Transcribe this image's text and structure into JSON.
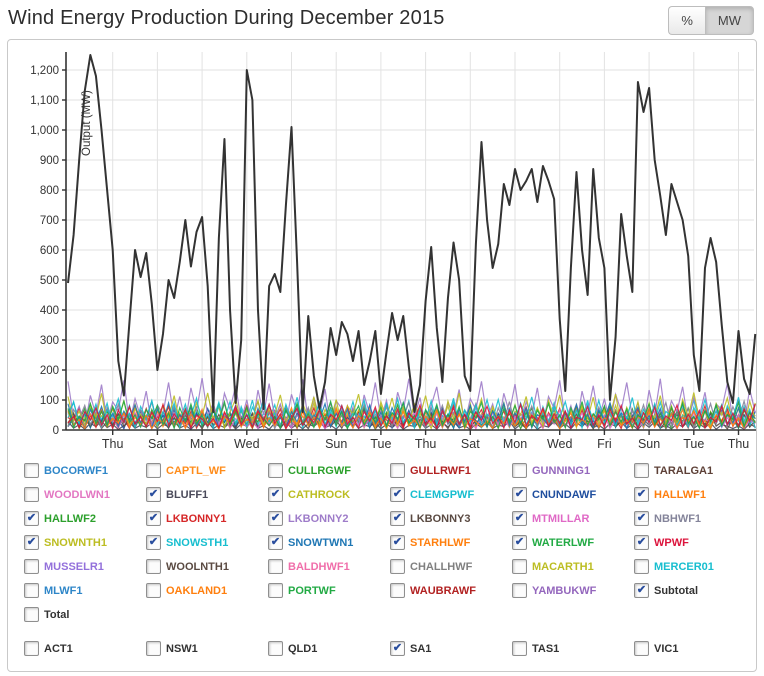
{
  "header": {
    "title": "Wind Energy Production During December 2015",
    "percent_label": "%",
    "mw_label": "MW",
    "active_unit": "MW"
  },
  "chart_data": {
    "type": "line",
    "title": "Wind Energy Production During December 2015",
    "xlabel": "",
    "ylabel": "Output (MW)",
    "ylim": [
      0,
      1260
    ],
    "grid": true,
    "legend_position": "checkbox grid below chart",
    "y_tick_values": [
      0,
      100,
      200,
      300,
      400,
      500,
      600,
      700,
      800,
      900,
      1000,
      1100,
      1200
    ],
    "y_tick_labels": [
      "0",
      "100",
      "200",
      "300",
      "400",
      "500",
      "600",
      "700",
      "800",
      "900",
      "1,000",
      "1,100",
      "1,200"
    ],
    "x_tick_days": [
      2,
      4,
      6,
      8,
      10,
      12,
      14,
      16,
      18,
      20,
      22,
      24,
      26,
      28,
      30
    ],
    "x_tick_labels": [
      "Thu",
      "Sat",
      "Mon",
      "Wed",
      "Fri",
      "Sun",
      "Tue",
      "Thu",
      "Sat",
      "Mon",
      "Wed",
      "Fri",
      "Sun",
      "Tue",
      "Thu"
    ],
    "x_start_day": 0,
    "x_step_days": 0.25,
    "x_span_days": 30.75,
    "subtotal_series": {
      "name": "Subtotal",
      "color": "#333333",
      "values": [
        490,
        650,
        900,
        1130,
        1250,
        1180,
        1000,
        800,
        600,
        230,
        115,
        360,
        600,
        510,
        590,
        420,
        200,
        320,
        500,
        440,
        560,
        700,
        545,
        660,
        710,
        480,
        60,
        640,
        970,
        400,
        90,
        300,
        1200,
        1100,
        400,
        70,
        480,
        520,
        460,
        750,
        1010,
        560,
        60,
        380,
        180,
        70,
        160,
        340,
        250,
        360,
        320,
        230,
        330,
        150,
        230,
        330,
        120,
        260,
        390,
        300,
        380,
        210,
        60,
        150,
        430,
        610,
        340,
        160,
        440,
        625,
        500,
        180,
        130,
        620,
        960,
        700,
        540,
        620,
        820,
        750,
        870,
        800,
        830,
        870,
        760,
        880,
        830,
        770,
        370,
        130,
        540,
        860,
        600,
        450,
        870,
        640,
        540,
        100,
        310,
        720,
        580,
        460,
        1160,
        1060,
        1140,
        900,
        780,
        650,
        820,
        760,
        700,
        580,
        250,
        130,
        540,
        640,
        560,
        350,
        160,
        90,
        330,
        170,
        120,
        320
      ]
    },
    "farm_band_pattern": [
      15,
      42,
      8,
      65,
      30,
      88,
      20,
      55,
      10,
      70,
      35,
      95,
      25,
      60,
      5,
      45,
      80,
      18,
      50,
      28,
      75,
      12,
      58,
      38,
      90,
      22,
      48,
      8,
      68,
      32,
      85,
      15,
      52,
      25,
      78,
      10,
      62,
      40,
      92,
      18,
      45,
      6,
      72,
      30,
      82,
      20,
      58,
      12,
      66,
      36,
      88,
      24,
      50,
      8,
      74,
      28,
      95,
      16,
      54,
      34,
      80,
      14,
      60,
      26,
      70,
      8,
      48,
      38,
      86,
      18,
      56,
      10,
      76,
      32,
      90,
      22,
      44,
      6,
      64,
      28,
      84,
      16,
      52,
      36,
      92,
      12,
      58,
      24,
      72,
      8,
      46,
      30,
      88,
      20,
      62,
      14,
      78,
      34,
      96,
      26,
      50,
      10,
      68,
      38,
      82,
      18,
      56,
      6,
      74,
      28,
      86,
      22,
      48,
      12,
      66,
      32,
      94,
      16,
      60,
      24,
      76,
      8,
      54,
      40
    ],
    "farm_series": [
      {
        "name": "BLUFF1",
        "color": "#4A4A5A",
        "scale": 0.32,
        "phase": 5
      },
      {
        "name": "CATHROCK",
        "color": "#BCBD22",
        "scale": 0.95,
        "phase": 12
      },
      {
        "name": "CLEMGPWF",
        "color": "#17BECF",
        "scale": 1.05,
        "phase": 23
      },
      {
        "name": "CNUNDAWF",
        "color": "#1F4E9E",
        "scale": 0.75,
        "phase": 31
      },
      {
        "name": "HALLWF1",
        "color": "#FF7F0E",
        "scale": 0.8,
        "phase": 44
      },
      {
        "name": "HALLWF2",
        "color": "#2CA02C",
        "scale": 0.9,
        "phase": 57
      },
      {
        "name": "LKBONNY1",
        "color": "#D62728",
        "scale": 0.85,
        "phase": 66
      },
      {
        "name": "LKBONNY2",
        "color": "#9E7CC9",
        "scale": 1.8,
        "phase": 74
      },
      {
        "name": "LKBONNY3",
        "color": "#5A4A42",
        "scale": 0.6,
        "phase": 83
      },
      {
        "name": "MTMILLAR",
        "color": "#E069C6",
        "scale": 0.7,
        "phase": 92
      },
      {
        "name": "NBHWF1",
        "color": "#84849A",
        "scale": 1.0,
        "phase": 101
      },
      {
        "name": "SNOWNTH1",
        "color": "#BCBD22",
        "scale": 1.3,
        "phase": 110
      },
      {
        "name": "SNOWSTH1",
        "color": "#17BECF",
        "scale": 1.15,
        "phase": 15
      },
      {
        "name": "SNOWTWN1",
        "color": "#1F77B4",
        "scale": 0.95,
        "phase": 38
      },
      {
        "name": "STARHLWF",
        "color": "#FF7F0E",
        "scale": 0.7,
        "phase": 50
      },
      {
        "name": "WATERLWF",
        "color": "#22AA44",
        "scale": 1.0,
        "phase": 88
      },
      {
        "name": "WPWF",
        "color": "#DC143C",
        "scale": 0.9,
        "phase": 99
      }
    ]
  },
  "legend": {
    "farms": [
      {
        "label": "BOCORWF1",
        "color": "#2E86C8",
        "checked": false
      },
      {
        "label": "CAPTL_WF",
        "color": "#FF8C1A",
        "checked": false
      },
      {
        "label": "CULLRGWF",
        "color": "#2CA02C",
        "checked": false
      },
      {
        "label": "GULLRWF1",
        "color": "#B22222",
        "checked": false
      },
      {
        "label": "GUNNING1",
        "color": "#9467BD",
        "checked": false
      },
      {
        "label": "TARALGA1",
        "color": "#5D4037",
        "checked": false
      },
      {
        "label": "WOODLWN1",
        "color": "#E377C2",
        "checked": false
      },
      {
        "label": "BLUFF1",
        "color": "#4A4A5A",
        "checked": true
      },
      {
        "label": "CATHROCK",
        "color": "#BCBD22",
        "checked": true
      },
      {
        "label": "CLEMGPWF",
        "color": "#17BECF",
        "checked": true
      },
      {
        "label": "CNUNDAWF",
        "color": "#1F4E9E",
        "checked": true
      },
      {
        "label": "HALLWF1",
        "color": "#FF7F0E",
        "checked": true
      },
      {
        "label": "HALLWF2",
        "color": "#2CA02C",
        "checked": true
      },
      {
        "label": "LKBONNY1",
        "color": "#D62728",
        "checked": true
      },
      {
        "label": "LKBONNY2",
        "color": "#9E7CC9",
        "checked": true
      },
      {
        "label": "LKBONNY3",
        "color": "#5A4A42",
        "checked": true
      },
      {
        "label": "MTMILLAR",
        "color": "#E069C6",
        "checked": true
      },
      {
        "label": "NBHWF1",
        "color": "#84849A",
        "checked": true
      },
      {
        "label": "SNOWNTH1",
        "color": "#BCBD22",
        "checked": true
      },
      {
        "label": "SNOWSTH1",
        "color": "#17BECF",
        "checked": true
      },
      {
        "label": "SNOWTWN1",
        "color": "#1F77B4",
        "checked": true
      },
      {
        "label": "STARHLWF",
        "color": "#FF7F0E",
        "checked": true
      },
      {
        "label": "WATERLWF",
        "color": "#22AA44",
        "checked": true
      },
      {
        "label": "WPWF",
        "color": "#DC143C",
        "checked": true
      },
      {
        "label": "MUSSELR1",
        "color": "#9370DB",
        "checked": false
      },
      {
        "label": "WOOLNTH1",
        "color": "#5A4A42",
        "checked": false
      },
      {
        "label": "BALDHWF1",
        "color": "#F06EAA",
        "checked": false
      },
      {
        "label": "CHALLHWF",
        "color": "#808080",
        "checked": false
      },
      {
        "label": "MACARTH1",
        "color": "#BCBD22",
        "checked": false
      },
      {
        "label": "MERCER01",
        "color": "#17BECF",
        "checked": false
      },
      {
        "label": "MLWF1",
        "color": "#2E86C8",
        "checked": false
      },
      {
        "label": "OAKLAND1",
        "color": "#FF7F0E",
        "checked": false
      },
      {
        "label": "PORTWF",
        "color": "#22AA44",
        "checked": false
      },
      {
        "label": "WAUBRAWF",
        "color": "#B22222",
        "checked": false
      },
      {
        "label": "YAMBUKWF",
        "color": "#9467BD",
        "checked": false
      },
      {
        "label": "Subtotal",
        "color": "#333333",
        "checked": true
      },
      {
        "label": "Total",
        "color": "#333333",
        "checked": false
      }
    ],
    "regions": [
      {
        "label": "ACT1",
        "color": "#333333",
        "checked": false
      },
      {
        "label": "NSW1",
        "color": "#333333",
        "checked": false
      },
      {
        "label": "QLD1",
        "color": "#333333",
        "checked": false
      },
      {
        "label": "SA1",
        "color": "#333333",
        "checked": true
      },
      {
        "label": "TAS1",
        "color": "#333333",
        "checked": false
      },
      {
        "label": "VIC1",
        "color": "#333333",
        "checked": false
      }
    ]
  }
}
